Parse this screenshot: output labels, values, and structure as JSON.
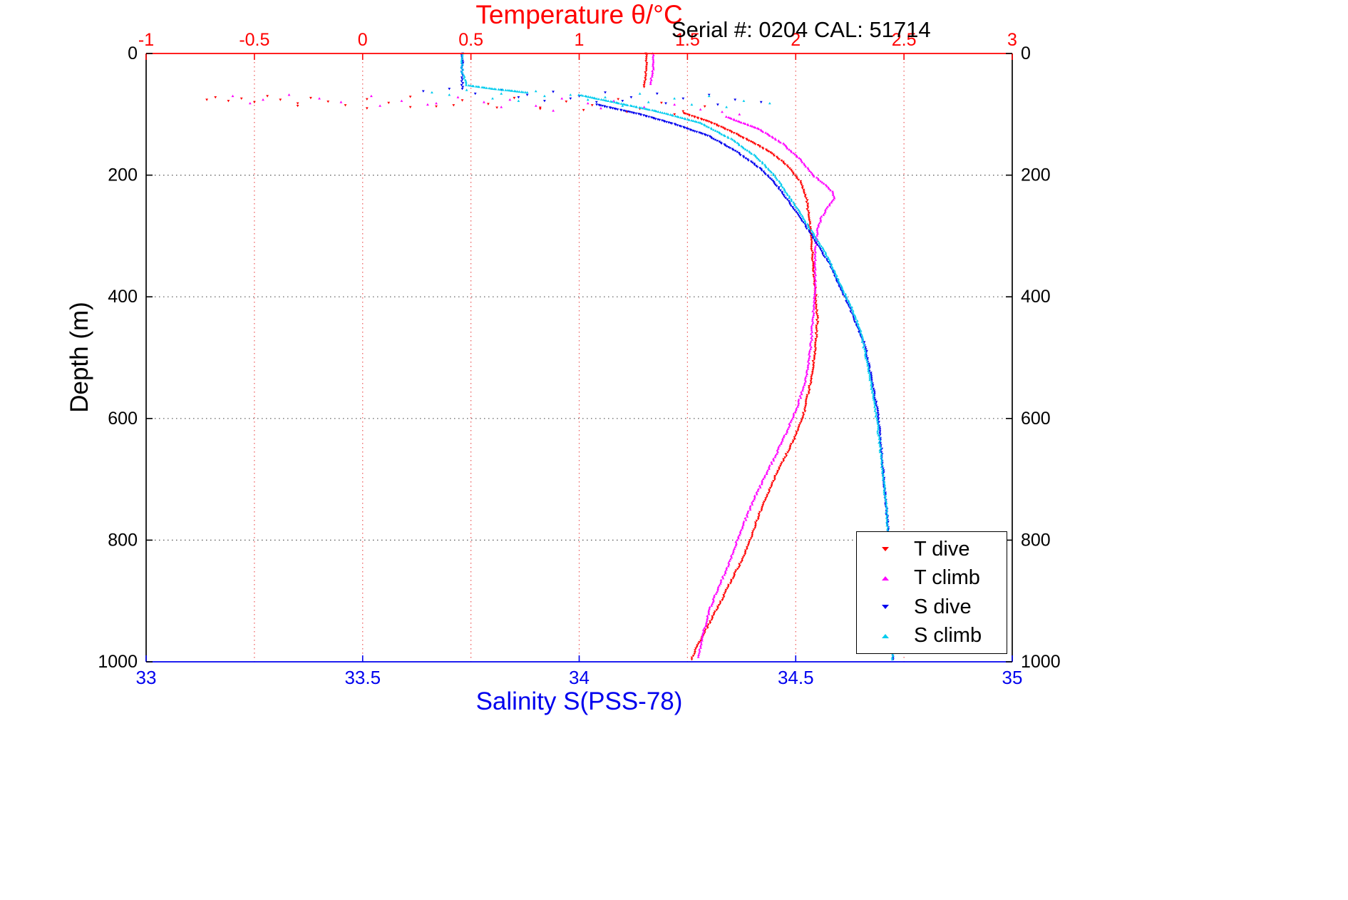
{
  "chart_data": {
    "type": "scatter",
    "title": "Temperature θ/°C",
    "annotation": "Serial #: 0204  CAL: 51714",
    "axes": {
      "temperature": {
        "label": "Temperature θ/°C",
        "position": "top",
        "min": -1,
        "max": 3,
        "ticks": [
          -1,
          -0.5,
          0,
          0.5,
          1,
          1.5,
          2,
          2.5,
          3
        ],
        "tick_labels": [
          "-1",
          "-0.5",
          "0",
          "0.5",
          "1",
          "1.5",
          "2",
          "2.5",
          "3"
        ],
        "color": "#FF0000"
      },
      "salinity": {
        "label": "Salinity S(PSS-78)",
        "position": "bottom",
        "min": 33,
        "max": 35,
        "ticks": [
          33,
          33.5,
          34,
          34.5,
          35
        ],
        "tick_labels": [
          "33",
          "33.5",
          "34",
          "34.5",
          "35"
        ],
        "color": "#0000EE"
      },
      "depth": {
        "label": "Depth (m)",
        "min": 0,
        "max": 1000,
        "ticks": [
          0,
          200,
          400,
          600,
          800,
          1000
        ],
        "tick_labels": [
          "0",
          "200",
          "400",
          "600",
          "800",
          "1000"
        ],
        "color": "#000000",
        "reversed": true
      }
    },
    "grid": {
      "style": "dotted",
      "vertical_color": "#EE5555",
      "horizontal_color": "#555555"
    },
    "legend": {
      "position": "bottom-right",
      "entries": [
        "T dive",
        "T climb",
        "S dive",
        "S climb"
      ]
    },
    "series": [
      {
        "name": "T dive",
        "axis": "temperature",
        "color": "#FF0000",
        "marker": "v",
        "segments": [
          [
            [
              1.31,
              0
            ],
            [
              1.31,
              28
            ],
            [
              1.3,
              55
            ]
          ],
          [
            [
              1.48,
              98
            ],
            [
              1.6,
              112
            ],
            [
              1.7,
              128
            ],
            [
              1.8,
              146
            ],
            [
              1.89,
              164
            ],
            [
              1.96,
              184
            ],
            [
              2.02,
              210
            ],
            [
              2.05,
              238
            ],
            [
              2.06,
              268
            ],
            [
              2.07,
              300
            ],
            [
              2.08,
              340
            ],
            [
              2.09,
              388
            ],
            [
              2.1,
              438
            ],
            [
              2.09,
              488
            ],
            [
              2.07,
              538
            ],
            [
              2.04,
              588
            ],
            [
              2.0,
              628
            ],
            [
              1.95,
              664
            ],
            [
              1.9,
              700
            ],
            [
              1.86,
              734
            ],
            [
              1.82,
              768
            ],
            [
              1.79,
              800
            ],
            [
              1.75,
              834
            ],
            [
              1.7,
              868
            ],
            [
              1.65,
              904
            ],
            [
              1.59,
              944
            ],
            [
              1.54,
              978
            ],
            [
              1.52,
              996
            ]
          ]
        ],
        "scatter": [
          [
            -0.72,
            76
          ],
          [
            -0.68,
            72
          ],
          [
            -0.62,
            78
          ],
          [
            -0.56,
            74
          ],
          [
            -0.5,
            80
          ],
          [
            -0.44,
            70
          ],
          [
            -0.38,
            76
          ],
          [
            -0.3,
            82
          ],
          [
            -0.24,
            73
          ],
          [
            -0.16,
            79
          ],
          [
            -0.08,
            85
          ],
          [
            0.02,
            75
          ],
          [
            0.12,
            81
          ],
          [
            0.22,
            71
          ],
          [
            0.34,
            87
          ],
          [
            0.46,
            77
          ],
          [
            0.58,
            83
          ],
          [
            0.7,
            73
          ],
          [
            0.82,
            89
          ],
          [
            0.94,
            79
          ],
          [
            1.06,
            85
          ],
          [
            1.18,
            75
          ],
          [
            1.28,
            91
          ],
          [
            1.38,
            81
          ],
          [
            1.48,
            95
          ],
          [
            1.58,
            87
          ],
          [
            1.44,
            100
          ],
          [
            1.22,
            96
          ],
          [
            1.02,
            93
          ],
          [
            0.82,
            91
          ],
          [
            0.62,
            89
          ],
          [
            0.42,
            85
          ],
          [
            0.22,
            88
          ],
          [
            0.02,
            90
          ],
          [
            -0.3,
            86
          ]
        ]
      },
      {
        "name": "T climb",
        "axis": "temperature",
        "color": "#FF00FF",
        "marker": "^",
        "segments": [
          [
            [
              1.34,
              0
            ],
            [
              1.34,
              26
            ],
            [
              1.33,
              50
            ]
          ],
          [
            [
              1.68,
              104
            ],
            [
              1.83,
              124
            ],
            [
              1.94,
              148
            ],
            [
              2.02,
              174
            ],
            [
              2.08,
              200
            ],
            [
              2.13,
              214
            ],
            [
              2.17,
              227
            ],
            [
              2.18,
              238
            ],
            [
              2.15,
              252
            ],
            [
              2.12,
              268
            ],
            [
              2.1,
              290
            ],
            [
              2.09,
              330
            ],
            [
              2.09,
              380
            ],
            [
              2.08,
              430
            ],
            [
              2.07,
              480
            ],
            [
              2.05,
              530
            ],
            [
              2.01,
              578
            ],
            [
              1.96,
              620
            ],
            [
              1.91,
              658
            ],
            [
              1.86,
              694
            ],
            [
              1.81,
              730
            ],
            [
              1.77,
              764
            ],
            [
              1.73,
              800
            ],
            [
              1.69,
              840
            ],
            [
              1.64,
              880
            ],
            [
              1.6,
              916
            ],
            [
              1.57,
              956
            ],
            [
              1.55,
              992
            ]
          ]
        ],
        "scatter": [
          [
            -0.6,
            70
          ],
          [
            -0.46,
            76
          ],
          [
            -0.34,
            68
          ],
          [
            -0.2,
            74
          ],
          [
            -0.1,
            80
          ],
          [
            0.04,
            70
          ],
          [
            0.18,
            78
          ],
          [
            0.3,
            84
          ],
          [
            0.44,
            72
          ],
          [
            0.56,
            80
          ],
          [
            0.68,
            76
          ],
          [
            0.8,
            86
          ],
          [
            0.92,
            74
          ],
          [
            1.04,
            82
          ],
          [
            1.16,
            78
          ],
          [
            1.3,
            88
          ],
          [
            1.44,
            84
          ],
          [
            1.56,
            92
          ],
          [
            1.66,
            96
          ],
          [
            1.1,
            90
          ],
          [
            0.88,
            94
          ],
          [
            0.64,
            88
          ],
          [
            0.34,
            82
          ],
          [
            0.08,
            86
          ],
          [
            1.74,
            100
          ],
          [
            -0.52,
            82
          ]
        ]
      },
      {
        "name": "S dive",
        "axis": "salinity",
        "color": "#0000EE",
        "marker": "v",
        "segments": [
          [
            [
              33.73,
              0
            ],
            [
              33.73,
              30
            ],
            [
              33.73,
              58
            ]
          ],
          [
            [
              34.04,
              84
            ],
            [
              34.14,
              100
            ],
            [
              34.22,
              116
            ],
            [
              34.3,
              136
            ],
            [
              34.36,
              160
            ],
            [
              34.42,
              190
            ],
            [
              34.46,
              220
            ],
            [
              34.49,
              250
            ],
            [
              34.52,
              280
            ],
            [
              34.55,
              314
            ],
            [
              34.58,
              348
            ],
            [
              34.6,
              380
            ],
            [
              34.62,
              410
            ],
            [
              34.64,
              444
            ],
            [
              34.66,
              480
            ],
            [
              34.67,
              516
            ],
            [
              34.68,
              554
            ],
            [
              34.69,
              594
            ],
            [
              34.695,
              632
            ],
            [
              34.7,
              670
            ],
            [
              34.705,
              710
            ],
            [
              34.71,
              752
            ],
            [
              34.715,
              800
            ],
            [
              34.72,
              850
            ],
            [
              34.722,
              900
            ],
            [
              34.724,
              950
            ],
            [
              34.725,
              996
            ]
          ]
        ],
        "scatter": [
          [
            33.64,
            62
          ],
          [
            33.7,
            58
          ],
          [
            33.76,
            66
          ],
          [
            33.82,
            60
          ],
          [
            33.88,
            68
          ],
          [
            33.94,
            63
          ],
          [
            34.0,
            70
          ],
          [
            34.06,
            64
          ],
          [
            34.12,
            72
          ],
          [
            34.18,
            66
          ],
          [
            34.24,
            74
          ],
          [
            34.3,
            68
          ],
          [
            34.36,
            76
          ],
          [
            34.42,
            80
          ],
          [
            34.1,
            78
          ],
          [
            33.98,
            74
          ],
          [
            33.86,
            72
          ],
          [
            34.2,
            82
          ],
          [
            34.32,
            84
          ],
          [
            34.04,
            80
          ],
          [
            33.92,
            78
          ]
        ]
      },
      {
        "name": "S climb",
        "axis": "salinity",
        "color": "#00CCEE",
        "marker": "^",
        "segments": [
          [
            [
              33.73,
              0
            ],
            [
              33.73,
              30
            ],
            [
              33.74,
              52
            ],
            [
              33.8,
              58
            ],
            [
              33.88,
              64
            ]
          ],
          [
            [
              34.0,
              68
            ],
            [
              34.08,
              80
            ],
            [
              34.18,
              95
            ],
            [
              34.28,
              114
            ],
            [
              34.35,
              140
            ],
            [
              34.41,
              170
            ],
            [
              34.45,
              200
            ],
            [
              34.48,
              230
            ],
            [
              34.51,
              262
            ],
            [
              34.54,
              296
            ],
            [
              34.57,
              330
            ],
            [
              34.59,
              360
            ],
            [
              34.61,
              390
            ],
            [
              34.63,
              420
            ],
            [
              34.65,
              456
            ],
            [
              34.66,
              492
            ],
            [
              34.67,
              528
            ],
            [
              34.68,
              566
            ],
            [
              34.688,
              606
            ],
            [
              34.695,
              646
            ],
            [
              34.7,
              686
            ],
            [
              34.707,
              730
            ],
            [
              34.712,
              776
            ],
            [
              34.717,
              826
            ],
            [
              34.72,
              876
            ],
            [
              34.722,
              926
            ],
            [
              34.723,
              976
            ],
            [
              34.723,
              996
            ]
          ]
        ],
        "scatter": [
          [
            33.66,
            64
          ],
          [
            33.74,
            60
          ],
          [
            33.82,
            66
          ],
          [
            33.9,
            62
          ],
          [
            33.98,
            68
          ],
          [
            34.06,
            72
          ],
          [
            34.14,
            66
          ],
          [
            34.22,
            74
          ],
          [
            34.3,
            70
          ],
          [
            34.38,
            78
          ],
          [
            34.44,
            82
          ],
          [
            34.02,
            76
          ],
          [
            33.92,
            70
          ],
          [
            34.16,
            80
          ],
          [
            34.26,
            84
          ],
          [
            33.8,
            74
          ],
          [
            34.1,
            86
          ],
          [
            34.34,
            88
          ],
          [
            33.7,
            68
          ],
          [
            33.86,
            78
          ]
        ]
      }
    ]
  }
}
